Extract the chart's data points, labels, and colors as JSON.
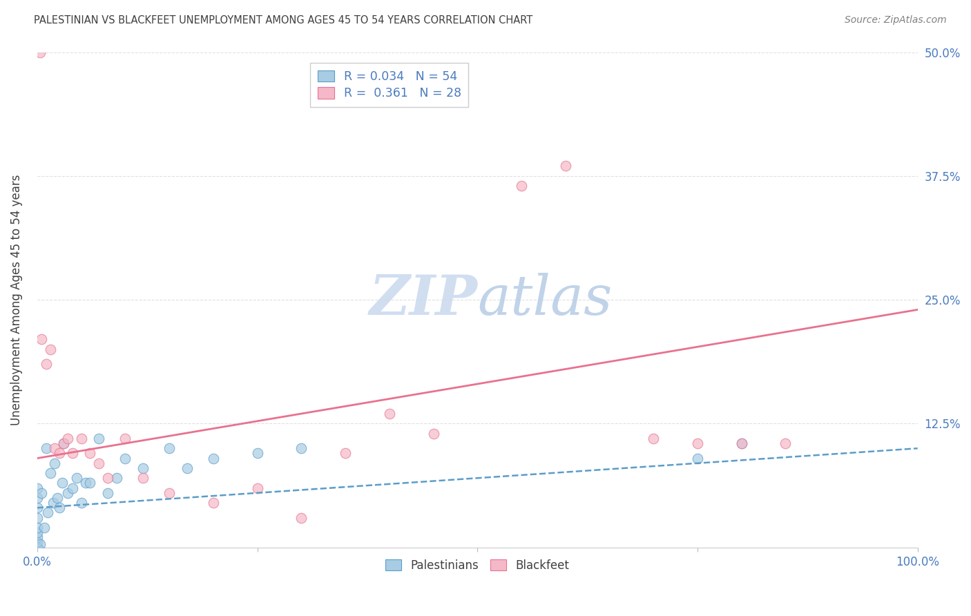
{
  "title": "PALESTINIAN VS BLACKFEET UNEMPLOYMENT AMONG AGES 45 TO 54 YEARS CORRELATION CHART",
  "source": "Source: ZipAtlas.com",
  "ylabel_label": "Unemployment Among Ages 45 to 54 years",
  "xlim": [
    0,
    100
  ],
  "ylim": [
    0,
    50
  ],
  "yticks": [
    0,
    12.5,
    25.0,
    37.5,
    50.0
  ],
  "ytick_labels_right": [
    "",
    "12.5%",
    "25.0%",
    "37.5%",
    "50.0%"
  ],
  "xtick_labels": [
    "0.0%",
    "",
    "",
    "",
    "100.0%"
  ],
  "blue_scatter_color": "#a8cce3",
  "blue_scatter_edge": "#5b9dc9",
  "pink_scatter_color": "#f5b8c8",
  "pink_scatter_edge": "#e8728f",
  "blue_line_color": "#5b9dc9",
  "pink_line_color": "#e8728f",
  "tick_color": "#4a7bbf",
  "watermark_zip_color": "#c5d8ee",
  "watermark_atlas_color": "#b8cfe8",
  "grid_color": "#cccccc",
  "title_color": "#404040",
  "source_color": "#808080",
  "ylabel_color": "#404040",
  "legend_text_color": "#4a7bbf",
  "pal_x": [
    0,
    0,
    0,
    0,
    0,
    0,
    0,
    0,
    0,
    0,
    0,
    0,
    0,
    0,
    0,
    0,
    0,
    0,
    0,
    0,
    0,
    0,
    0,
    0,
    0.3,
    0.5,
    0.8,
    1.0,
    1.2,
    1.5,
    1.8,
    2.0,
    2.3,
    2.5,
    2.8,
    3.0,
    3.5,
    4.0,
    4.5,
    5.0,
    5.5,
    6.0,
    7.0,
    8.0,
    9.0,
    10.0,
    12.0,
    15.0,
    17.0,
    20.0,
    25.0,
    30.0,
    75.0,
    80.0
  ],
  "pal_y": [
    0,
    0,
    0,
    0,
    0,
    0,
    0,
    0,
    0,
    0,
    0,
    0,
    0,
    0,
    0,
    0,
    0.5,
    1.0,
    1.5,
    2.0,
    3.0,
    4.0,
    5.0,
    6.0,
    0.3,
    5.5,
    2.0,
    10.0,
    3.5,
    7.5,
    4.5,
    8.5,
    5.0,
    4.0,
    6.5,
    10.5,
    5.5,
    6.0,
    7.0,
    4.5,
    6.5,
    6.5,
    11.0,
    5.5,
    7.0,
    9.0,
    8.0,
    10.0,
    8.0,
    9.0,
    9.5,
    10.0,
    9.0,
    10.5
  ],
  "blk_x": [
    0.3,
    0.5,
    1.0,
    1.5,
    2.0,
    2.5,
    3.0,
    3.5,
    4.0,
    5.0,
    6.0,
    7.0,
    8.0,
    10.0,
    12.0,
    15.0,
    20.0,
    25.0,
    30.0,
    35.0,
    40.0,
    45.0,
    55.0,
    60.0,
    70.0,
    75.0,
    80.0,
    85.0
  ],
  "blk_y": [
    50.0,
    21.0,
    18.5,
    20.0,
    10.0,
    9.5,
    10.5,
    11.0,
    9.5,
    11.0,
    9.5,
    8.5,
    7.0,
    11.0,
    7.0,
    5.5,
    4.5,
    6.0,
    3.0,
    9.5,
    13.5,
    11.5,
    36.5,
    38.5,
    11.0,
    10.5,
    10.5,
    10.5
  ],
  "pink_line_x0": 0,
  "pink_line_y0": 9.0,
  "pink_line_x1": 100,
  "pink_line_y1": 24.0,
  "blue_line_x0": 0,
  "blue_line_y0": 4.0,
  "blue_line_x1": 100,
  "blue_line_y1": 10.0
}
